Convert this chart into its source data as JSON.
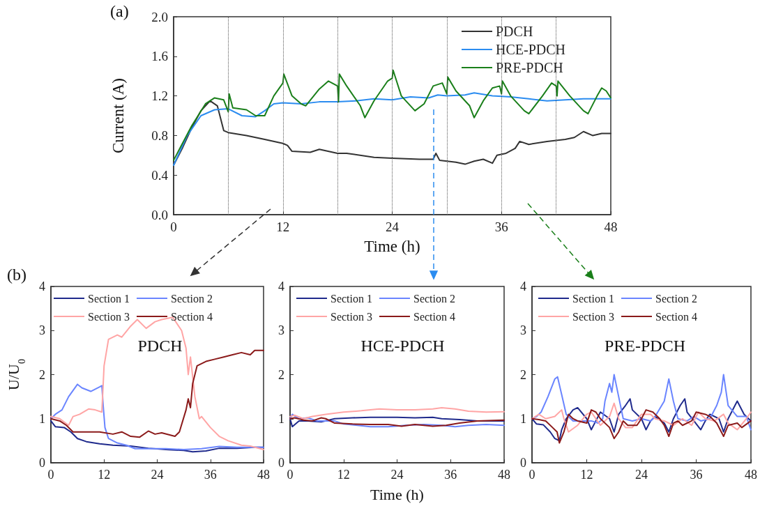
{
  "chart_data": [
    {
      "type": "line",
      "annotations": [
        "(a)"
      ],
      "xlabel": "Time (h)",
      "ylabel": "Current (A)",
      "xlim": [
        0,
        48
      ],
      "xticks": [
        0,
        12,
        24,
        36,
        48
      ],
      "ylim": [
        0,
        2
      ],
      "yticks": [
        {
          "value": 0,
          "label": "0.0"
        },
        0.4,
        0.8,
        1.2,
        1.6,
        {
          "value": 2,
          "label": "2.0"
        }
      ],
      "grid": false,
      "legend": "top right",
      "marker": "none",
      "line_style": "solid",
      "ref_lines": [
        {
          "axis": "x",
          "value": 6,
          "color": "#555555",
          "line_style": "dotted"
        },
        {
          "axis": "x",
          "value": 12,
          "color": "#555555",
          "line_style": "dotted"
        },
        {
          "axis": "x",
          "value": 18,
          "color": "#555555",
          "line_style": "dotted"
        },
        {
          "axis": "x",
          "value": 24,
          "color": "#555555",
          "line_style": "dotted"
        },
        {
          "axis": "x",
          "value": 30,
          "color": "#555555",
          "line_style": "dotted"
        },
        {
          "axis": "x",
          "value": 36,
          "color": "#555555",
          "line_style": "dotted"
        },
        {
          "axis": "x",
          "value": 42,
          "color": "#555555",
          "line_style": "dotted"
        }
      ],
      "series": [
        {
          "name": "PDCH",
          "color": "#333333",
          "x": [
            0,
            1,
            2,
            3,
            4,
            4.8,
            5.5,
            6,
            8,
            10,
            12,
            12.5,
            13,
            15,
            16,
            18,
            19,
            22,
            24,
            27,
            28.5,
            28.8,
            29.2,
            31,
            32,
            33,
            34,
            35,
            35.5,
            36.5,
            37.5,
            38,
            39,
            41,
            43,
            44,
            45,
            46,
            47,
            48
          ],
          "values": [
            0.5,
            0.68,
            0.88,
            1.05,
            1.15,
            1.1,
            0.85,
            0.83,
            0.8,
            0.76,
            0.72,
            0.7,
            0.64,
            0.63,
            0.66,
            0.62,
            0.62,
            0.58,
            0.57,
            0.56,
            0.56,
            0.62,
            0.55,
            0.53,
            0.51,
            0.54,
            0.56,
            0.52,
            0.6,
            0.62,
            0.67,
            0.74,
            0.71,
            0.74,
            0.76,
            0.78,
            0.84,
            0.8,
            0.82,
            0.82
          ]
        },
        {
          "name": "HCE-PDCH",
          "color": "#2b8cf0",
          "x": [
            0,
            1.5,
            3,
            4.5,
            6,
            7.5,
            9,
            10,
            11,
            12,
            14,
            16,
            18,
            20,
            22,
            24,
            26,
            28,
            29,
            30,
            32,
            33,
            35,
            37,
            39,
            41,
            43,
            45,
            48
          ],
          "values": [
            0.5,
            0.8,
            1.0,
            1.06,
            1.07,
            1.0,
            0.99,
            1.05,
            1.12,
            1.13,
            1.12,
            1.14,
            1.14,
            1.15,
            1.17,
            1.16,
            1.19,
            1.18,
            1.21,
            1.2,
            1.21,
            1.23,
            1.2,
            1.19,
            1.17,
            1.15,
            1.16,
            1.17,
            1.17
          ]
        },
        {
          "name": "PRE-PDCH",
          "color": "#1a7f1a",
          "x": [
            0,
            2,
            3.5,
            4.5,
            5.5,
            6,
            6.1,
            6.5,
            8,
            9,
            10,
            11,
            12,
            12.1,
            13,
            14,
            14.5,
            16,
            17,
            18,
            18.1,
            18.2,
            19,
            20.5,
            21,
            22,
            23.5,
            24,
            24.1,
            25,
            26.5,
            27.5,
            28.5,
            29.5,
            30,
            30.1,
            31,
            32.5,
            33,
            34,
            35,
            35.8,
            36,
            36.1,
            37,
            38.5,
            39,
            40.5,
            41.5,
            42,
            42.1,
            42.2,
            43.5,
            45,
            45.5,
            46.5,
            47,
            47.5,
            48
          ],
          "values": [
            0.55,
            0.9,
            1.12,
            1.18,
            1.16,
            1.04,
            1.22,
            1.08,
            1.06,
            1.0,
            1.0,
            1.2,
            1.33,
            1.42,
            1.2,
            1.12,
            1.1,
            1.27,
            1.35,
            1.3,
            1.14,
            1.42,
            1.3,
            1.1,
            0.98,
            1.15,
            1.35,
            1.38,
            1.46,
            1.2,
            1.05,
            1.12,
            1.3,
            1.33,
            1.22,
            1.39,
            1.25,
            1.1,
            0.98,
            1.15,
            1.28,
            1.3,
            1.22,
            1.35,
            1.2,
            1.05,
            1.02,
            1.2,
            1.33,
            1.3,
            1.2,
            1.35,
            1.2,
            1.05,
            1.02,
            1.2,
            1.28,
            1.25,
            1.18
          ]
        }
      ]
    },
    {
      "type": "line",
      "title": "PDCH",
      "annotations": [
        "(b)"
      ],
      "ylabel": "U/U$_{0}$",
      "xlim": [
        0,
        48
      ],
      "xticks": [
        0,
        12,
        24,
        36,
        48
      ],
      "ylim": [
        0,
        4
      ],
      "yticks": [
        0,
        1,
        2,
        3,
        4
      ],
      "grid": false,
      "legend": "top",
      "marker": "none",
      "line_style": "solid",
      "series": [
        {
          "name": "Section 1",
          "color": "#1f2a8c",
          "x": [
            0,
            1,
            3,
            4.5,
            6,
            8,
            11,
            14,
            18,
            22,
            26,
            30,
            32,
            35,
            38,
            42,
            46,
            48
          ],
          "values": [
            0.95,
            0.82,
            0.8,
            0.7,
            0.55,
            0.48,
            0.43,
            0.4,
            0.38,
            0.33,
            0.3,
            0.28,
            0.25,
            0.27,
            0.33,
            0.33,
            0.35,
            0.35
          ]
        },
        {
          "name": "Section 2",
          "color": "#6a85ff",
          "x": [
            0,
            1,
            2.5,
            4,
            6,
            7,
            9,
            11,
            11.5,
            11.8,
            12.2,
            13,
            15,
            17,
            19,
            22,
            26,
            30,
            34,
            38,
            42,
            48
          ],
          "values": [
            1.0,
            1.1,
            1.2,
            1.5,
            1.78,
            1.7,
            1.62,
            1.72,
            1.75,
            1.3,
            0.8,
            0.55,
            0.45,
            0.4,
            0.32,
            0.32,
            0.32,
            0.3,
            0.32,
            0.37,
            0.35,
            0.35
          ]
        },
        {
          "name": "Section 3",
          "color": "#ffa5a5",
          "x": [
            0,
            2,
            4,
            5,
            6.5,
            8.5,
            10,
            11.5,
            12,
            13,
            15,
            16,
            18,
            19.5,
            21.5,
            23.5,
            25,
            27.5,
            29.5,
            30.5,
            31,
            31.5,
            32.5,
            33.5,
            34,
            36,
            38,
            40,
            43,
            45,
            48
          ],
          "values": [
            1.05,
            1.0,
            0.85,
            1.05,
            1.1,
            1.22,
            1.2,
            1.15,
            2.2,
            2.8,
            2.9,
            2.85,
            3.1,
            3.25,
            3.05,
            3.2,
            3.25,
            3.3,
            3.0,
            2.6,
            2.0,
            2.4,
            1.5,
            1.0,
            1.05,
            0.8,
            0.6,
            0.5,
            0.4,
            0.38,
            0.3
          ]
        },
        {
          "name": "Section 4",
          "color": "#8b1a1a",
          "x": [
            0,
            2,
            3.5,
            5,
            8,
            11,
            14,
            16,
            18,
            20,
            22,
            23.5,
            25,
            28,
            29,
            30.5,
            31,
            31.5,
            32,
            33,
            35,
            37,
            39,
            41,
            43,
            45,
            46,
            48
          ],
          "values": [
            1.0,
            0.95,
            0.85,
            0.7,
            0.7,
            0.7,
            0.65,
            0.7,
            0.6,
            0.58,
            0.72,
            0.65,
            0.68,
            0.6,
            0.7,
            1.2,
            1.45,
            1.25,
            1.8,
            2.2,
            2.3,
            2.35,
            2.4,
            2.45,
            2.5,
            2.45,
            2.55,
            2.55
          ]
        }
      ]
    },
    {
      "type": "line",
      "title": "HCE-PDCH",
      "xlabel": "Time (h)",
      "xlim": [
        0,
        48
      ],
      "xticks": [
        0,
        12,
        24,
        36,
        48
      ],
      "ylim": [
        0,
        4
      ],
      "yticks": [
        0,
        1,
        2,
        3,
        4
      ],
      "grid": false,
      "legend": "top",
      "marker": "none",
      "line_style": "solid",
      "series": [
        {
          "name": "Section 1",
          "color": "#1f2a8c",
          "x": [
            0,
            0.5,
            2,
            4,
            7,
            10,
            14,
            18,
            22,
            24,
            28,
            32,
            34,
            38,
            42,
            48
          ],
          "values": [
            1.0,
            0.82,
            0.95,
            0.95,
            0.93,
            1.0,
            1.02,
            1.03,
            1.03,
            1.03,
            1.02,
            1.03,
            1.0,
            0.98,
            0.95,
            0.95
          ]
        },
        {
          "name": "Section 2",
          "color": "#6a85ff",
          "x": [
            0,
            0.5,
            2,
            4,
            6,
            10,
            12,
            18,
            22,
            26,
            30,
            34,
            37,
            40,
            44,
            48
          ],
          "values": [
            1.0,
            1.1,
            1.0,
            1.02,
            0.95,
            0.95,
            0.88,
            0.82,
            0.82,
            0.85,
            0.87,
            0.85,
            0.82,
            0.85,
            0.87,
            0.85
          ]
        },
        {
          "name": "Section 3",
          "color": "#ffa5a5",
          "x": [
            0,
            1,
            3,
            5,
            8,
            12,
            16,
            20,
            24,
            28,
            32,
            34,
            37,
            40,
            44,
            48
          ],
          "values": [
            1.05,
            1.08,
            1.0,
            1.05,
            1.1,
            1.15,
            1.18,
            1.22,
            1.2,
            1.2,
            1.22,
            1.25,
            1.22,
            1.17,
            1.15,
            1.16
          ]
        },
        {
          "name": "Section 4",
          "color": "#8b1a1a",
          "x": [
            0,
            1,
            3,
            5,
            7,
            8,
            10,
            14,
            18,
            22,
            25,
            28,
            32,
            35,
            38,
            42,
            48
          ],
          "values": [
            1.0,
            1.02,
            0.97,
            0.95,
            1.02,
            1.0,
            0.9,
            0.88,
            0.87,
            0.87,
            0.83,
            0.87,
            0.83,
            0.85,
            0.9,
            0.95,
            0.97
          ]
        }
      ]
    },
    {
      "type": "line",
      "title": "PRE-PDCH",
      "xlim": [
        0,
        48
      ],
      "xticks": [
        0,
        12,
        24,
        36,
        48
      ],
      "ylim": [
        0,
        4
      ],
      "yticks": [
        0,
        1,
        2,
        3,
        4
      ],
      "grid": false,
      "legend": "top",
      "marker": "none",
      "line_style": "solid",
      "series": [
        {
          "name": "Section 1",
          "color": "#1f2a8c",
          "x": [
            0,
            1,
            2.5,
            4,
            5,
            6,
            6.5,
            7.5,
            9,
            10,
            12,
            13,
            14,
            15,
            17,
            18,
            19,
            20.5,
            21.5,
            22,
            24,
            25,
            26,
            27,
            29,
            30,
            31,
            32.5,
            33.5,
            34,
            35.5,
            37,
            38,
            39,
            41,
            42,
            43,
            44.5,
            45,
            46.5,
            48
          ],
          "values": [
            1.0,
            0.88,
            0.86,
            0.7,
            0.55,
            0.5,
            0.75,
            1.0,
            1.2,
            1.25,
            1.0,
            0.75,
            0.95,
            1.15,
            1.0,
            0.7,
            1.1,
            1.3,
            1.45,
            1.2,
            1.0,
            0.75,
            0.95,
            1.05,
            0.9,
            0.7,
            1.0,
            1.3,
            1.45,
            1.15,
            0.95,
            0.75,
            0.95,
            1.1,
            1.0,
            0.7,
            1.0,
            1.3,
            1.4,
            1.1,
            0.95
          ]
        },
        {
          "name": "Section 2",
          "color": "#6a85ff",
          "x": [
            0,
            1,
            2,
            3.5,
            5,
            5.6,
            6.5,
            7.5,
            9,
            11,
            13,
            14.5,
            15.5,
            16,
            17,
            17.5,
            18,
            19,
            20,
            22,
            24,
            26,
            27,
            29,
            30,
            31,
            32,
            34,
            35.5,
            37,
            39,
            40.5,
            41.5,
            42,
            43,
            45,
            47,
            48
          ],
          "values": [
            1.0,
            1.05,
            1.15,
            1.5,
            1.9,
            1.95,
            1.55,
            1.1,
            0.95,
            0.95,
            0.95,
            0.9,
            1.0,
            1.4,
            1.8,
            1.6,
            2.0,
            1.5,
            1.0,
            0.95,
            1.0,
            0.95,
            1.05,
            1.4,
            1.9,
            1.4,
            1.0,
            0.95,
            1.05,
            0.95,
            1.0,
            1.3,
            1.6,
            2.0,
            1.3,
            1.05,
            1.05,
            0.75
          ]
        },
        {
          "name": "Section 3",
          "color": "#ffa5a5",
          "x": [
            0,
            1.5,
            3,
            5,
            6.5,
            7,
            8,
            10,
            12,
            13,
            15,
            17,
            18,
            19,
            20.5,
            22,
            24,
            26,
            27,
            29,
            31,
            33,
            35,
            36.5,
            38,
            40,
            42,
            43,
            45,
            47,
            48
          ],
          "values": [
            1.0,
            1.1,
            1.0,
            1.05,
            1.2,
            1.0,
            0.7,
            0.85,
            1.1,
            1.15,
            0.85,
            1.05,
            1.35,
            1.0,
            0.8,
            0.8,
            1.1,
            1.1,
            1.0,
            0.95,
            0.85,
            1.0,
            0.85,
            1.15,
            1.0,
            0.95,
            1.1,
            0.9,
            0.75,
            1.0,
            1.15
          ]
        },
        {
          "name": "Section 4",
          "color": "#8b1a1a",
          "x": [
            0,
            1.5,
            3,
            4.5,
            5.5,
            6,
            7,
            8,
            9,
            10,
            12,
            13,
            14,
            15,
            17,
            18,
            19,
            20,
            21,
            23,
            24,
            25,
            26.5,
            28,
            29,
            30,
            31,
            32,
            33,
            35,
            36,
            38,
            39,
            40.5,
            42,
            43,
            45,
            46,
            48
          ],
          "values": [
            1.0,
            0.98,
            0.95,
            0.8,
            0.7,
            0.45,
            0.7,
            1.1,
            1.0,
            0.95,
            0.9,
            1.2,
            1.15,
            1.0,
            0.8,
            0.55,
            0.7,
            0.95,
            0.85,
            0.85,
            1.0,
            1.2,
            1.15,
            1.0,
            0.85,
            0.6,
            0.9,
            0.95,
            0.85,
            0.95,
            1.15,
            1.1,
            1.05,
            0.9,
            0.6,
            0.85,
            0.9,
            0.8,
            0.95
          ]
        }
      ]
    }
  ]
}
